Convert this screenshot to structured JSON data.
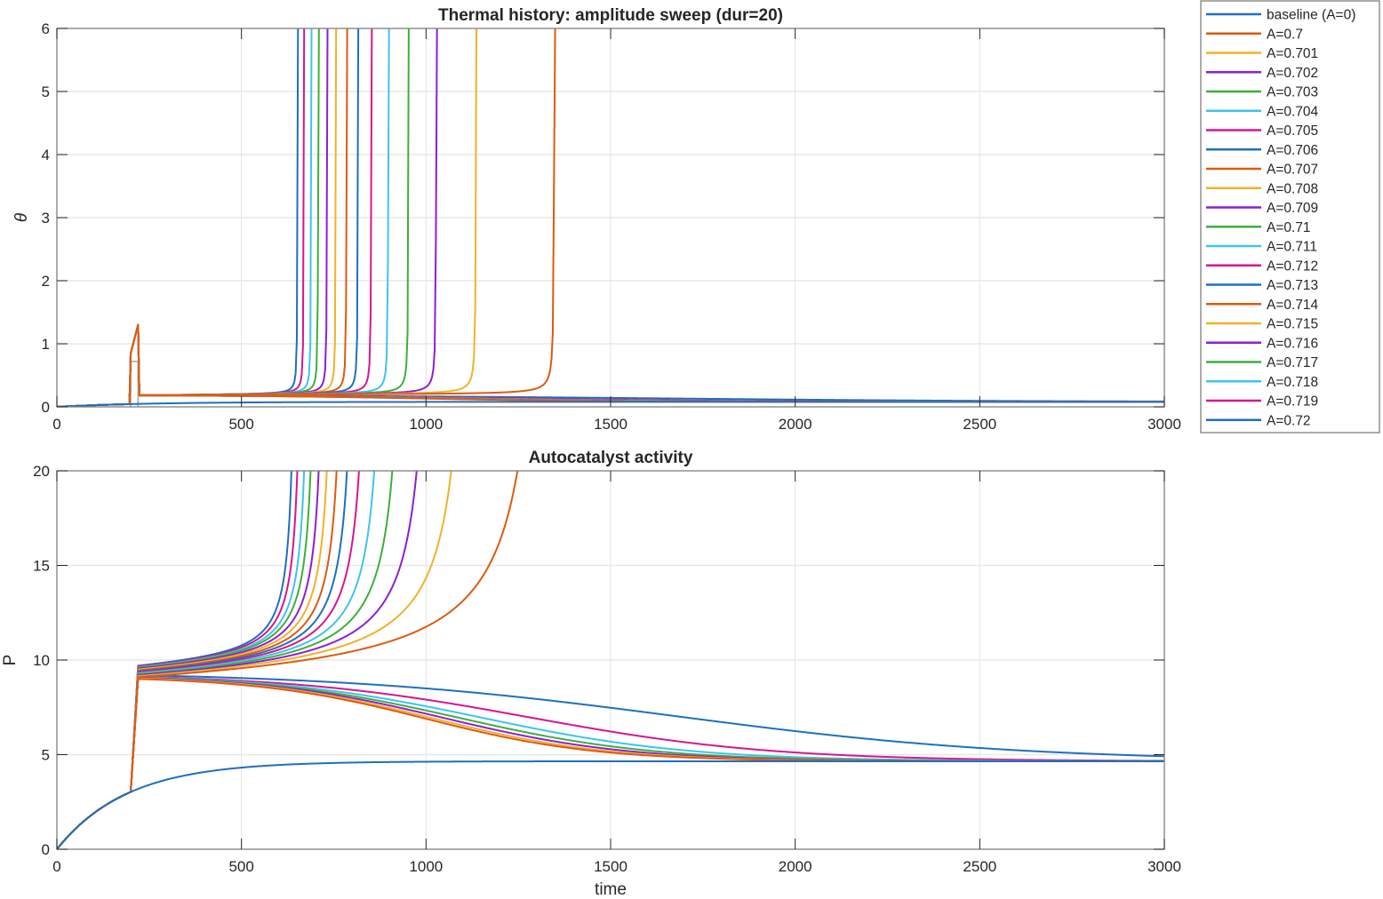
{
  "chart_data": [
    {
      "id": "thermal",
      "type": "line",
      "title": "Thermal history: amplitude sweep (dur=20)",
      "xlabel": "",
      "ylabel": "θ",
      "xlim": [
        0,
        3000
      ],
      "ylim": [
        0,
        6
      ],
      "xticks": [
        0,
        500,
        1000,
        1500,
        2000,
        2500,
        3000
      ],
      "yticks": [
        0,
        1,
        2,
        3,
        4,
        5,
        6
      ],
      "grid": true,
      "pulse": {
        "t_start": 200,
        "duration": 20,
        "peak_theta_baseline_shape": 0.72,
        "peak_theta_max": 1.3
      },
      "steady_theta": 0.08
    },
    {
      "id": "autocatalyst",
      "type": "line",
      "title": "Autocatalyst activity",
      "xlabel": "time",
      "ylabel": "P",
      "xlim": [
        0,
        3000
      ],
      "ylim": [
        0,
        20
      ],
      "xticks": [
        0,
        500,
        1000,
        1500,
        2000,
        2500,
        3000
      ],
      "yticks": [
        0,
        5,
        10,
        15,
        20
      ],
      "grid": true,
      "baseline_P_at_pulse": 3.1,
      "steady_P": 4.65
    }
  ],
  "series": [
    {
      "name": "baseline (A=0)",
      "A": 0,
      "color": "#0072BD",
      "outcome": "baseline",
      "P_after_pulse": null
    },
    {
      "name": "A=0.7",
      "A": 0.7,
      "color": "#D95319",
      "outcome": "runaway",
      "t_runaway": 1348,
      "P_after_pulse": 9.1
    },
    {
      "name": "A=0.701",
      "A": 0.701,
      "color": "#EDB120",
      "outcome": "runaway",
      "t_runaway": 1136,
      "P_after_pulse": 9.15
    },
    {
      "name": "A=0.702",
      "A": 0.702,
      "color": "#7E2F8E",
      "outcome": "runaway",
      "t_runaway": 1028,
      "P_after_pulse": 9.2
    },
    {
      "name": "A=0.703",
      "A": 0.703,
      "color": "#77AC30",
      "outcome": "runaway",
      "t_runaway": 953,
      "P_after_pulse": 9.25
    },
    {
      "name": "A=0.704",
      "A": 0.704,
      "color": "#4DBEEE",
      "outcome": "runaway",
      "t_runaway": 898,
      "P_after_pulse": 9.3
    },
    {
      "name": "A=0.705",
      "A": 0.705,
      "color": "#A2142F",
      "outcome": "runaway",
      "t_runaway": 852,
      "P_after_pulse": 9.35
    },
    {
      "name": "A=0.706",
      "A": 0.706,
      "color": "#0072BD",
      "outcome": "runaway",
      "t_runaway": 816,
      "P_after_pulse": 9.4
    },
    {
      "name": "A=0.707",
      "A": 0.707,
      "color": "#D95319",
      "outcome": "runaway",
      "t_runaway": 785,
      "P_after_pulse": 9.45
    },
    {
      "name": "A=0.708",
      "A": 0.708,
      "color": "#EDB120",
      "outcome": "runaway",
      "t_runaway": 756,
      "P_after_pulse": 9.5
    },
    {
      "name": "A=0.709",
      "A": 0.709,
      "color": "#7E2F8E",
      "outcome": "runaway",
      "t_runaway": 732,
      "P_after_pulse": 9.55
    },
    {
      "name": "A=0.71",
      "A": 0.71,
      "color": "#77AC30",
      "outcome": "runaway",
      "t_runaway": 708,
      "P_after_pulse": 9.6
    },
    {
      "name": "A=0.711",
      "A": 0.711,
      "color": "#4DBEEE",
      "outcome": "runaway",
      "t_runaway": 689,
      "P_after_pulse": 9.62
    },
    {
      "name": "A=0.712",
      "A": 0.712,
      "color": "#A2142F",
      "outcome": "runaway",
      "t_runaway": 669,
      "P_after_pulse": 9.66
    },
    {
      "name": "A=0.713",
      "A": 0.713,
      "color": "#0072BD",
      "outcome": "runaway",
      "t_runaway": 652,
      "P_after_pulse": 9.7
    },
    {
      "name": "A=0.714",
      "A": 0.714,
      "color": "#D95319",
      "outcome": "decay",
      "t_half_drop": 1000,
      "P_after_pulse": 9.0
    },
    {
      "name": "A=0.715",
      "A": 0.715,
      "color": "#EDB120",
      "outcome": "decay",
      "t_half_drop": 1020,
      "P_after_pulse": 9.03
    },
    {
      "name": "A=0.716",
      "A": 0.716,
      "color": "#7E2F8E",
      "outcome": "decay",
      "t_half_drop": 1050,
      "P_after_pulse": 9.06
    },
    {
      "name": "A=0.717",
      "A": 0.717,
      "color": "#77AC30",
      "outcome": "decay",
      "t_half_drop": 1090,
      "P_after_pulse": 9.08
    },
    {
      "name": "A=0.718",
      "A": 0.718,
      "color": "#4DBEEE",
      "outcome": "decay",
      "t_half_drop": 1150,
      "P_after_pulse": 9.1
    },
    {
      "name": "A=0.719",
      "A": 0.719,
      "color": "#A2142F",
      "outcome": "decay",
      "t_half_drop": 1280,
      "P_after_pulse": 9.12
    },
    {
      "name": "A=0.72",
      "A": 0.72,
      "color": "#0072BD",
      "outcome": "decay",
      "t_half_drop": 1680,
      "P_after_pulse": 9.2
    }
  ],
  "legend": {
    "location": "outside-top-right"
  }
}
